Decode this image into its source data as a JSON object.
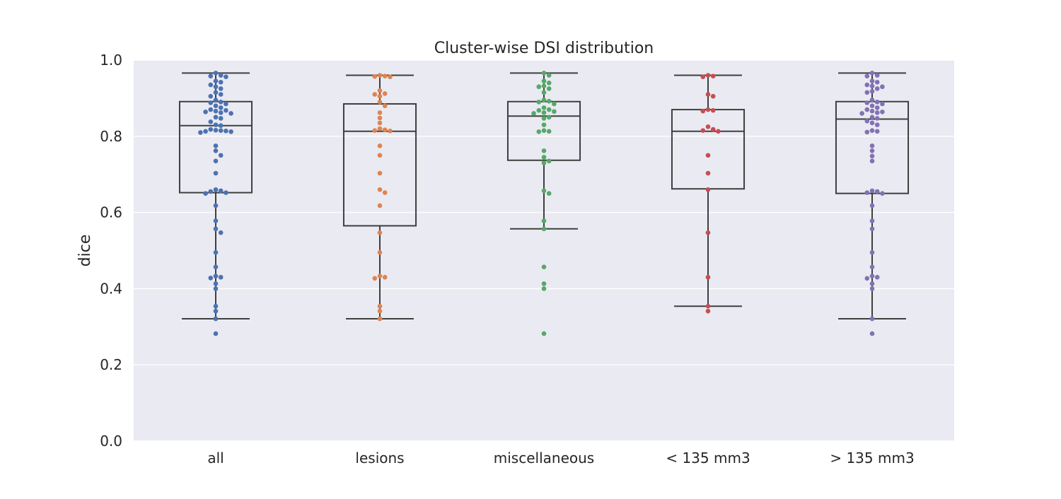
{
  "chart_data": {
    "type": "box",
    "title": "Cluster-wise DSI distribution",
    "xlabel": "",
    "ylabel": "dice",
    "ylim": [
      0,
      1
    ],
    "yticks": [
      0.0,
      0.2,
      0.4,
      0.6,
      0.8,
      1.0
    ],
    "ytick_labels": [
      "0.0",
      "0.2",
      "0.4",
      "0.6",
      "0.8",
      "1.0"
    ],
    "grid": true,
    "categories": [
      "all",
      "lesions",
      "miscellaneous",
      "< 135 mm3",
      "> 135 mm3"
    ],
    "colors": {
      "plot_bg": "#eaeaf2",
      "grid": "#ffffff",
      "box_line": "#3f3f3f",
      "all": "#4c72b0",
      "lesions": "#dd8452",
      "miscellaneous": "#55a868",
      "< 135 mm3": "#c44e52",
      "> 135 mm3": "#8172b3"
    },
    "boxes": [
      {
        "category": "all",
        "q1": 0.652,
        "median": 0.828,
        "q3": 0.891,
        "whisker_low": 0.321,
        "whisker_high": 0.966,
        "outliers": []
      },
      {
        "category": "lesions",
        "q1": 0.565,
        "median": 0.813,
        "q3": 0.885,
        "whisker_low": 0.321,
        "whisker_high": 0.96,
        "outliers": []
      },
      {
        "category": "miscellaneous",
        "q1": 0.737,
        "median": 0.853,
        "q3": 0.891,
        "whisker_low": 0.557,
        "whisker_high": 0.966,
        "outliers": []
      },
      {
        "category": "< 135 mm3",
        "q1": 0.662,
        "median": 0.813,
        "q3": 0.87,
        "whisker_low": 0.354,
        "whisker_high": 0.96,
        "outliers": []
      },
      {
        "category": "> 135 mm3",
        "q1": 0.65,
        "median": 0.845,
        "q3": 0.891,
        "whisker_low": 0.321,
        "whisker_high": 0.966,
        "outliers": []
      }
    ],
    "swarm": [
      {
        "category": "all",
        "values": [
          0.966,
          0.96,
          0.958,
          0.956,
          0.945,
          0.942,
          0.935,
          0.93,
          0.925,
          0.915,
          0.91,
          0.905,
          0.895,
          0.89,
          0.888,
          0.885,
          0.88,
          0.875,
          0.87,
          0.868,
          0.866,
          0.864,
          0.862,
          0.86,
          0.85,
          0.847,
          0.838,
          0.83,
          0.828,
          0.818,
          0.816,
          0.815,
          0.814,
          0.813,
          0.812,
          0.81,
          0.775,
          0.762,
          0.75,
          0.735,
          0.703,
          0.66,
          0.657,
          0.655,
          0.652,
          0.65,
          0.618,
          0.578,
          0.557,
          0.547,
          0.495,
          0.457,
          0.433,
          0.43,
          0.428,
          0.413,
          0.4,
          0.354,
          0.341,
          0.321,
          0.282
        ]
      },
      {
        "category": "lesions",
        "values": [
          0.96,
          0.958,
          0.957,
          0.956,
          0.92,
          0.912,
          0.91,
          0.905,
          0.89,
          0.88,
          0.862,
          0.848,
          0.835,
          0.82,
          0.817,
          0.815,
          0.814,
          0.775,
          0.75,
          0.703,
          0.66,
          0.652,
          0.618,
          0.547,
          0.495,
          0.433,
          0.43,
          0.427,
          0.354,
          0.341,
          0.321
        ]
      },
      {
        "category": "miscellaneous",
        "values": [
          0.966,
          0.96,
          0.945,
          0.94,
          0.932,
          0.93,
          0.925,
          0.915,
          0.895,
          0.892,
          0.89,
          0.885,
          0.875,
          0.87,
          0.868,
          0.865,
          0.862,
          0.86,
          0.85,
          0.847,
          0.83,
          0.815,
          0.813,
          0.812,
          0.762,
          0.745,
          0.735,
          0.73,
          0.657,
          0.65,
          0.578,
          0.557,
          0.457,
          0.413,
          0.4,
          0.282
        ]
      },
      {
        "category": "< 135 mm3",
        "values": [
          0.96,
          0.958,
          0.956,
          0.91,
          0.905,
          0.87,
          0.868,
          0.866,
          0.825,
          0.818,
          0.815,
          0.813,
          0.75,
          0.703,
          0.66,
          0.547,
          0.43,
          0.354,
          0.341
        ]
      },
      {
        "category": "> 135 mm3",
        "values": [
          0.966,
          0.96,
          0.958,
          0.945,
          0.942,
          0.935,
          0.932,
          0.93,
          0.925,
          0.918,
          0.915,
          0.895,
          0.89,
          0.888,
          0.885,
          0.88,
          0.875,
          0.87,
          0.866,
          0.864,
          0.862,
          0.86,
          0.85,
          0.847,
          0.84,
          0.835,
          0.83,
          0.815,
          0.813,
          0.811,
          0.775,
          0.762,
          0.748,
          0.735,
          0.657,
          0.655,
          0.652,
          0.65,
          0.618,
          0.578,
          0.557,
          0.495,
          0.457,
          0.433,
          0.43,
          0.427,
          0.413,
          0.4,
          0.321,
          0.282
        ]
      }
    ]
  }
}
